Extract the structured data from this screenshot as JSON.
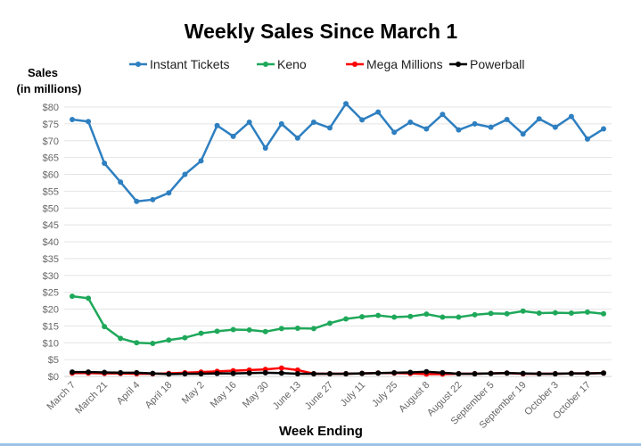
{
  "chart_data": {
    "type": "line",
    "title": "Weekly Sales Since March 1",
    "ylabel": "Sales\n(in millions)",
    "ylabel_lines": [
      "Sales",
      "(in millions)"
    ],
    "xlabel": "Week Ending",
    "ylim": [
      0,
      80
    ],
    "yticks": [
      "$0",
      "$5",
      "$10",
      "$15",
      "$20",
      "$25",
      "$30",
      "$35",
      "$40",
      "$45",
      "$50",
      "$55",
      "$60",
      "$65",
      "$70",
      "$75",
      "$80"
    ],
    "xtick_labels": [
      "March 7",
      "March 21",
      "April 4",
      "April 18",
      "May 2",
      "May 16",
      "May 30",
      "June 13",
      "June 27",
      "July 11",
      "July 25",
      "August 8",
      "August 22",
      "September 5",
      "September 19",
      "October 3",
      "October 17"
    ],
    "num_weeks": 34,
    "grid": true,
    "legend_position": "top",
    "series": [
      {
        "name": "Instant Tickets",
        "color": "#2e7fc0",
        "values": [
          76.3,
          75.7,
          63.3,
          57.7,
          52,
          52.5,
          54.5,
          60,
          64,
          74.5,
          71.3,
          75.5,
          67.8,
          75,
          70.8,
          75.5,
          73.8,
          81,
          76.2,
          78.5,
          72.5,
          75.5,
          73.5,
          77.8,
          73.2,
          75,
          74,
          76.3,
          72,
          76.5,
          74,
          77.2,
          70.5,
          73.5
        ]
      },
      {
        "name": "Keno",
        "color": "#1ea85a",
        "values": [
          23.8,
          23.2,
          14.8,
          11.3,
          10,
          9.8,
          10.8,
          11.5,
          12.8,
          13.4,
          13.9,
          13.8,
          13.3,
          14.2,
          14.3,
          14.2,
          15.8,
          17.1,
          17.7,
          18.1,
          17.6,
          17.8,
          18.5,
          17.6,
          17.6,
          18.3,
          18.7,
          18.6,
          19.4,
          18.8,
          18.9,
          18.8,
          19.1,
          18.6
        ]
      },
      {
        "name": "Mega Millions",
        "color": "#ff0000",
        "values": [
          1.0,
          1.0,
          0.9,
          0.9,
          0.8,
          0.8,
          0.9,
          1.1,
          1.3,
          1.5,
          1.7,
          1.9,
          2.1,
          2.5,
          1.9,
          0.8,
          0.8,
          0.8,
          0.9,
          1.0,
          1.0,
          0.9,
          0.7,
          0.7,
          0.8,
          0.8,
          0.9,
          1.0,
          0.8,
          0.8,
          0.8,
          0.9,
          0.9,
          1.0
        ]
      },
      {
        "name": "Powerball",
        "color": "#000000",
        "values": [
          1.3,
          1.3,
          1.2,
          1.1,
          1.1,
          0.9,
          0.7,
          0.8,
          0.8,
          0.9,
          0.9,
          1.0,
          1.1,
          1.0,
          0.8,
          0.8,
          0.8,
          0.8,
          0.9,
          1.0,
          1.1,
          1.2,
          1.4,
          1.1,
          0.8,
          0.8,
          0.9,
          1.0,
          0.9,
          0.8,
          0.8,
          0.9,
          0.9,
          1.0
        ]
      }
    ]
  }
}
